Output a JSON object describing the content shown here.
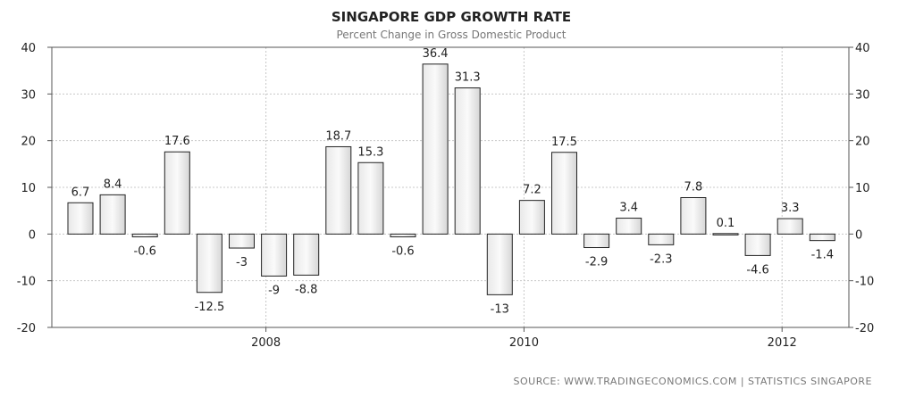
{
  "chart_data": {
    "type": "bar",
    "title": "SINGAPORE GDP GROWTH RATE",
    "subtitle": "Percent Change in Gross Domestic Product",
    "source": "SOURCE:  WWW.TRADINGECONOMICS.COM  |  STATISTICS SINGAPORE",
    "ylim": [
      -20,
      40
    ],
    "yticks": [
      "-20",
      "-10",
      "0",
      "10",
      "20",
      "30",
      "40"
    ],
    "xticks": [
      "2008",
      "2010",
      "2012"
    ],
    "grid": true,
    "values": [
      6.7,
      8.4,
      -0.6,
      17.6,
      -12.5,
      -3,
      -9,
      -8.8,
      18.7,
      15.3,
      -0.6,
      36.4,
      31.3,
      -13,
      7.2,
      17.5,
      -2.9,
      3.4,
      -2.3,
      7.8,
      0.1,
      -4.6,
      3.3,
      -1.4
    ],
    "labels": [
      "6.7",
      "8.4",
      "-0.6",
      "17.6",
      "-12.5",
      "-3",
      "-9",
      "-8.8",
      "18.7",
      "15.3",
      "-0.6",
      "36.4",
      "31.3",
      "-13",
      "7.2",
      "17.5",
      "-2.9",
      "3.4",
      "-2.3",
      "7.8",
      "0.1",
      "-4.6",
      "3.3",
      "-1.4"
    ]
  }
}
